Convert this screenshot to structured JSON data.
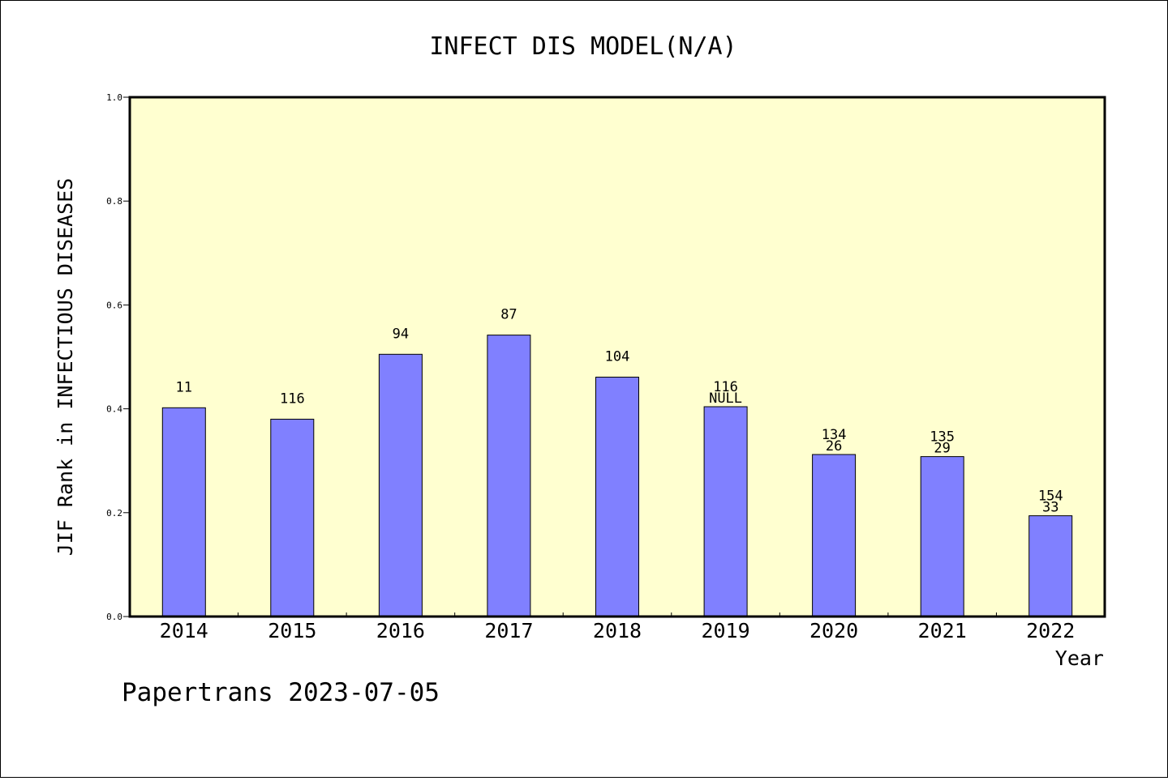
{
  "chart_data": {
    "type": "bar",
    "title": "INFECT DIS MODEL(N/A)",
    "xlabel": "Year",
    "ylabel": "JIF Rank in INFECTIOUS DISEASES",
    "ylim": [
      0,
      1.0
    ],
    "yticks": [
      "0.0",
      "0.2",
      "0.4",
      "0.6",
      "0.8",
      "1.0"
    ],
    "categories": [
      "2014",
      "2015",
      "2016",
      "2017",
      "2018",
      "2019",
      "2020",
      "2021",
      "2022"
    ],
    "values": [
      0.402,
      0.38,
      0.505,
      0.542,
      0.461,
      0.404,
      0.312,
      0.308,
      0.194
    ],
    "labels_top": [
      "11",
      "116",
      "94",
      "87",
      "104",
      "116",
      "134",
      "135",
      "154"
    ],
    "labels_bottom": [
      "",
      "",
      "",
      "",
      "",
      "NULL",
      "26",
      "29",
      "33"
    ],
    "grid": false,
    "colors": {
      "plot_background": "#ffffd0",
      "bar": "#8080ff"
    }
  },
  "footer": {
    "text": "Papertrans 2023-07-05"
  }
}
